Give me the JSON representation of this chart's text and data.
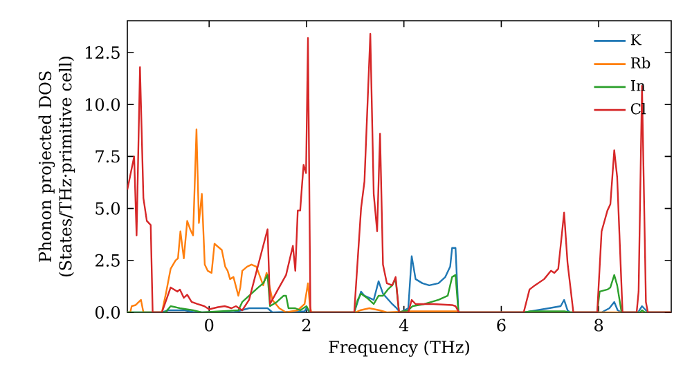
{
  "chart_data": {
    "type": "line",
    "xlabel": "Frequency (THz)",
    "ylabel": "Phonon projected DOS (States/THz·primitive cell)",
    "xlim": [
      -1.68,
      9.49
    ],
    "ylim": [
      0,
      14.03
    ],
    "xticks": [
      0,
      2,
      4,
      6,
      8
    ],
    "yticks": [
      {
        "value": 0,
        "label": "0.0"
      },
      {
        "value": 2.5,
        "label": "2.5"
      },
      {
        "value": 5,
        "label": "5.0"
      },
      {
        "value": 7.5,
        "label": "7.5"
      },
      {
        "value": 10,
        "label": "10.0"
      },
      {
        "value": 12.5,
        "label": "12.5"
      }
    ],
    "legend": "top right",
    "grid": false,
    "marker": "none",
    "line_style": "solid",
    "series": [
      {
        "name": "K",
        "color": "#1f77b4",
        "x": [
          -1.68,
          -0.97,
          -0.84,
          -0.5,
          -0.3,
          0.5,
          0.82,
          1.2,
          1.3,
          1.96,
          2.0,
          2.07,
          2.98,
          3.05,
          3.12,
          3.19,
          3.38,
          3.48,
          3.57,
          3.76,
          3.85,
          3.92,
          4.09,
          4.16,
          4.24,
          4.38,
          4.52,
          4.71,
          4.85,
          4.95,
          4.99,
          5.06,
          5.12,
          6.46,
          6.6,
          6.98,
          7.22,
          7.29,
          7.36,
          7.41,
          8.06,
          8.22,
          8.32,
          8.39,
          8.47,
          8.81,
          8.89,
          8.97,
          9.01,
          9.49
        ],
        "values": [
          0,
          0,
          0.1,
          0.1,
          0,
          0,
          0.2,
          0.2,
          0,
          0.05,
          0.2,
          0,
          0,
          0.5,
          1.0,
          0.8,
          0.6,
          1.5,
          0.9,
          0.4,
          0.2,
          0,
          0.2,
          2.7,
          1.6,
          1.4,
          1.3,
          1.4,
          1.7,
          2.2,
          3.1,
          3.1,
          0,
          0,
          0.05,
          0.2,
          0.3,
          0.6,
          0.1,
          0,
          0,
          0.2,
          0.5,
          0.1,
          0,
          0,
          0.3,
          0.1,
          0,
          0
        ]
      },
      {
        "name": "Rb",
        "color": "#ff7f0e",
        "x": [
          -1.68,
          -1.62,
          -1.59,
          -1.51,
          -1.4,
          -1.35,
          -0.97,
          -0.88,
          -0.79,
          -0.69,
          -0.64,
          -0.59,
          -0.52,
          -0.45,
          -0.39,
          -0.33,
          -0.26,
          -0.21,
          -0.15,
          -0.09,
          -0.03,
          0.05,
          0.11,
          0.21,
          0.26,
          0.33,
          0.38,
          0.43,
          0.5,
          0.6,
          0.64,
          0.68,
          0.78,
          0.87,
          0.97,
          1.11,
          1.18,
          1.3,
          1.44,
          1.58,
          1.82,
          1.96,
          2.03,
          2.07,
          2.1,
          3.0,
          3.1,
          3.29,
          3.5,
          3.65,
          4.1,
          5.1,
          5.15,
          9.49
        ],
        "values": [
          0,
          0,
          0.3,
          0.35,
          0.6,
          0,
          0,
          1.0,
          2.1,
          2.5,
          2.6,
          3.9,
          2.6,
          4.4,
          4.0,
          3.7,
          8.8,
          4.3,
          5.7,
          2.3,
          2.0,
          1.9,
          3.3,
          3.1,
          3.0,
          2.2,
          2.0,
          1.6,
          1.7,
          0.8,
          1.2,
          2.0,
          2.2,
          2.3,
          2.2,
          1.3,
          1.9,
          0.6,
          0.2,
          0,
          0.1,
          0.4,
          1.4,
          0.3,
          0,
          0,
          0.1,
          0.2,
          0.1,
          0,
          0.05,
          0.05,
          0,
          0
        ]
      },
      {
        "name": "In",
        "color": "#2ca02c",
        "x": [
          -1.68,
          -0.9,
          -0.79,
          -0.6,
          -0.33,
          -0.15,
          0.6,
          0.68,
          1.01,
          1.11,
          1.2,
          1.25,
          1.39,
          1.53,
          1.58,
          1.63,
          1.77,
          1.87,
          2.0,
          2.07,
          2.98,
          3.05,
          3.12,
          3.24,
          3.38,
          3.48,
          3.57,
          3.67,
          3.76,
          3.83,
          3.9,
          4.09,
          4.18,
          4.42,
          4.71,
          4.9,
          4.99,
          5.06,
          5.12,
          6.46,
          6.6,
          7.3,
          7.4,
          7.97,
          8.02,
          8.18,
          8.24,
          8.32,
          8.38,
          8.47,
          8.85,
          8.89,
          8.95,
          9.49
        ],
        "values": [
          0,
          0,
          0.3,
          0.2,
          0.1,
          0,
          0.1,
          0.5,
          1.2,
          1.4,
          1.8,
          0.3,
          0.5,
          0.8,
          0.8,
          0.2,
          0.2,
          0.1,
          0.3,
          0,
          0,
          0.6,
          0.9,
          0.7,
          0.4,
          0.8,
          0.8,
          1.1,
          1.3,
          1.6,
          0,
          0.1,
          0.3,
          0.4,
          0.6,
          0.8,
          1.7,
          1.8,
          0,
          0,
          0.05,
          0.05,
          0,
          0,
          1.0,
          1.1,
          1.2,
          1.8,
          1.3,
          0,
          0,
          0.1,
          0,
          0
        ]
      },
      {
        "name": "Cl",
        "color": "#d62728",
        "x": [
          -1.68,
          -1.54,
          -1.49,
          -1.42,
          -1.35,
          -1.28,
          -1.2,
          -1.16,
          -0.97,
          -0.79,
          -0.65,
          -0.6,
          -0.52,
          -0.45,
          -0.36,
          -0.24,
          -0.1,
          0.0,
          0.18,
          0.32,
          0.46,
          0.55,
          0.68,
          0.82,
          0.92,
          1.01,
          1.2,
          1.25,
          1.39,
          1.58,
          1.72,
          1.77,
          1.82,
          1.87,
          1.91,
          1.94,
          1.99,
          2.03,
          2.08,
          2.98,
          3.12,
          3.19,
          3.31,
          3.38,
          3.45,
          3.51,
          3.57,
          3.65,
          3.76,
          3.83,
          3.9,
          4.09,
          4.16,
          4.24,
          4.61,
          4.99,
          5.06,
          5.13,
          6.46,
          6.58,
          6.69,
          6.88,
          7.02,
          7.09,
          7.17,
          7.29,
          7.36,
          7.43,
          7.48,
          7.97,
          8.06,
          8.18,
          8.24,
          8.32,
          8.38,
          8.49,
          8.78,
          8.82,
          8.89,
          8.97,
          9.01,
          9.49
        ],
        "values": [
          5.9,
          7.5,
          3.7,
          11.8,
          5.5,
          4.4,
          4.2,
          0,
          0,
          1.2,
          1.0,
          1.1,
          0.7,
          0.85,
          0.5,
          0.4,
          0.3,
          0.15,
          0.25,
          0.3,
          0.2,
          0.3,
          0.1,
          0.6,
          1.5,
          2.3,
          4.0,
          0.4,
          1.0,
          1.8,
          3.2,
          2.0,
          4.9,
          4.9,
          6.2,
          7.1,
          6.7,
          13.2,
          0,
          0,
          5.0,
          6.3,
          13.4,
          5.7,
          3.9,
          8.6,
          2.3,
          1.4,
          1.3,
          1.7,
          0,
          0,
          0.6,
          0.4,
          0.4,
          0.35,
          0.3,
          0,
          0,
          1.1,
          1.3,
          1.6,
          2.0,
          1.9,
          2.1,
          4.8,
          2.4,
          1.0,
          0,
          0,
          3.9,
          4.9,
          5.2,
          7.8,
          6.5,
          0,
          0,
          1.0,
          10.9,
          0.5,
          0,
          0
        ]
      }
    ]
  }
}
